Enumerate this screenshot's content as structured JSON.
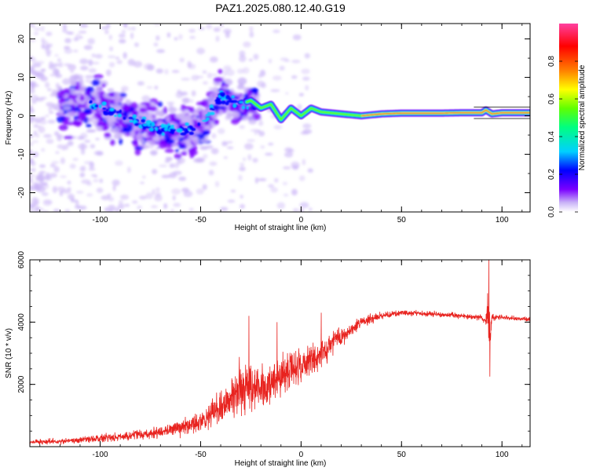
{
  "title": "PAZ1.2025.080.12.40.G19",
  "chart_data": [
    {
      "type": "heatmap",
      "xlabel": "Height of straight line (km)",
      "ylabel": "Frequency (Hz)",
      "xlim": [
        -135,
        114
      ],
      "ylim": [
        -25,
        24
      ],
      "xticks": [
        -100,
        -50,
        0,
        50,
        100
      ],
      "yticks": [
        -20,
        -10,
        0,
        10,
        20
      ],
      "colorbar": {
        "label": "Normalized spectral amplitude",
        "range": [
          0,
          1
        ],
        "ticks": [
          0.0,
          0.2,
          0.4,
          0.6,
          0.8
        ],
        "colormap": "gist_ncar_like",
        "colors": [
          "#ffffff",
          "#c9b3f7",
          "#7a00ff",
          "#0000ff",
          "#00d0ff",
          "#00ff80",
          "#60ff00",
          "#ffff00",
          "#ff8000",
          "#ff0000",
          "#ff40a0"
        ]
      },
      "ridge": {
        "x": [
          -110,
          -100,
          -90,
          -80,
          -70,
          -60,
          -50,
          -40,
          -30,
          -25,
          -20,
          -15,
          -10,
          -5,
          0,
          5,
          10,
          20,
          30,
          40,
          50,
          60,
          70,
          80,
          90,
          92,
          95,
          100,
          110,
          114
        ],
        "y": [
          3.5,
          2.5,
          0,
          -2,
          -3,
          -4,
          -3,
          5,
          3,
          4,
          2,
          3,
          -1,
          2,
          0,
          2,
          1,
          0.5,
          0,
          0.5,
          0.7,
          0.7,
          0.7,
          0.8,
          0.8,
          1.5,
          0.5,
          0.8,
          0.8,
          0.8
        ]
      },
      "grid": false
    },
    {
      "type": "line",
      "xlabel": "Height of straight line (km)",
      "ylabel": "SNR (10 * v/v)",
      "xlim": [
        -135,
        114
      ],
      "ylim": [
        0,
        6000
      ],
      "xticks": [
        -100,
        -50,
        0,
        50,
        100
      ],
      "yticks": [
        2000,
        4000,
        6000
      ],
      "color": "#e8231f",
      "grid": false,
      "series": [
        {
          "x": [
            -135,
            -120,
            -110,
            -100,
            -90,
            -80,
            -70,
            -60,
            -50,
            -45,
            -40,
            -35,
            -30,
            -25,
            -20,
            -15,
            -10,
            -5,
            0,
            5,
            10,
            15,
            20,
            25,
            30,
            40,
            50,
            60,
            70,
            80,
            90,
            92,
            93,
            94,
            95,
            100,
            110,
            114
          ],
          "mean": [
            150,
            170,
            210,
            280,
            330,
            380,
            480,
            600,
            820,
            1000,
            1300,
            1600,
            1900,
            1850,
            1950,
            2000,
            2200,
            2450,
            2600,
            2800,
            3000,
            3300,
            3500,
            3750,
            4000,
            4200,
            4300,
            4280,
            4250,
            4200,
            4150,
            4000,
            4300,
            3600,
            4150,
            4150,
            4100,
            4100
          ],
          "noise": [
            120,
            120,
            150,
            180,
            200,
            220,
            260,
            320,
            420,
            550,
            700,
            900,
            1100,
            1300,
            1100,
            900,
            900,
            800,
            750,
            700,
            650,
            550,
            400,
            300,
            250,
            150,
            130,
            120,
            120,
            120,
            120,
            200,
            900,
            900,
            150,
            110,
            100,
            100
          ]
        }
      ],
      "spikes": [
        {
          "x": -26,
          "y": 4200
        },
        {
          "x": -12,
          "y": 4000
        },
        {
          "x": 10,
          "y": 4300
        },
        {
          "x": 93.5,
          "y": 6000
        },
        {
          "x": 94,
          "y": 2250
        }
      ]
    }
  ]
}
